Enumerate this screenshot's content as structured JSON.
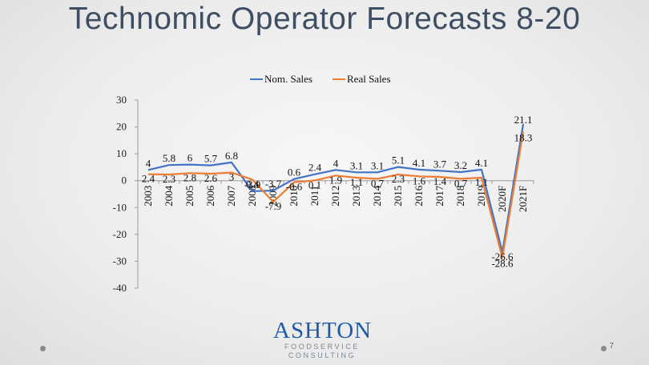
{
  "slide": {
    "title": "Technomic Operator Forecasts 8-20",
    "number": "7"
  },
  "logo": {
    "word": "ASHTON",
    "line1": "FOODSERVICE",
    "line2": "CONSULTING"
  },
  "colors": {
    "nominal": "#4472c4",
    "real": "#ed7d31",
    "title": "#3f4f63",
    "logo": "#1f5aa6"
  },
  "chart_data": {
    "type": "line",
    "title": "",
    "xlabel": "",
    "ylabel": "",
    "categories": [
      "2003",
      "2004",
      "2005",
      "2006",
      "2007",
      "2008",
      "2009",
      "2010",
      "2011",
      "2012",
      "2013",
      "2014",
      "2015",
      "2016",
      "2017",
      "2018",
      "2019",
      "2020F",
      "2021F"
    ],
    "series": [
      {
        "name": "Nom. Sales",
        "values": [
          4,
          5.8,
          6,
          5.7,
          6.8,
          -3.9,
          -3.7,
          0.6,
          2.4,
          4,
          3.1,
          3.1,
          5.1,
          4.1,
          3.7,
          3.2,
          4.1,
          -26.6,
          21.1
        ]
      },
      {
        "name": "Real Sales",
        "values": [
          2.4,
          2.3,
          2.8,
          2.6,
          3,
          0.4,
          -7.9,
          -0.6,
          0.1,
          1.9,
          1.1,
          0.7,
          2.3,
          1.6,
          1.4,
          0.7,
          1.1,
          -28.6,
          18.3
        ]
      }
    ],
    "data_labels": {
      "Nom. Sales": [
        "4",
        "5.8",
        "6",
        "5.7",
        "6.8",
        "-3.9",
        "-3.7",
        "0.6",
        "2.4",
        "4",
        "3.1",
        "3.1",
        "5.1",
        "4.1",
        "3.7",
        "3.2",
        "4.1",
        "-26.6",
        "21.1"
      ],
      "Real Sales": [
        "2.4",
        "2.3",
        "2.8",
        "2.6",
        "3",
        "0.4",
        "-7.9",
        "-0.6",
        "0.1",
        "1.9",
        "1.1",
        "0.7",
        "2.3",
        "1.6",
        "1.4",
        "0.7",
        "1.1",
        "-28.6",
        "18.3"
      ]
    },
    "yticks": [
      30,
      20,
      10,
      0,
      -10,
      -20,
      -30,
      -40
    ],
    "ylim": [
      -40,
      30
    ],
    "grid": false,
    "legend": "top-center"
  }
}
